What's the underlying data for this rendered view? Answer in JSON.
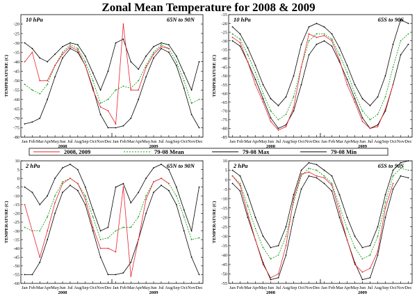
{
  "figure": {
    "title": "Zonal Mean Temperature for 2008 & 2009",
    "legend": [
      {
        "label": "2008, 2009",
        "color": "#e8212a",
        "dash": "none"
      },
      {
        "label": "79-08 Mean",
        "color": "#1a9e1a",
        "dash": "2,2"
      },
      {
        "label": "79-08 Max",
        "color": "#000000",
        "dash": "none"
      },
      {
        "label": "79-08 Min",
        "color": "#000000",
        "dash": "none"
      }
    ],
    "months": [
      "Jan",
      "Feb",
      "Mar",
      "Apr",
      "May",
      "Jun",
      "Jul",
      "Aug",
      "Sep",
      "Oct",
      "Nov",
      "Dec",
      "Jan",
      "Feb",
      "Mar",
      "Apr",
      "May",
      "Jun",
      "Jul",
      "Aug",
      "Sep",
      "Oct",
      "Nov",
      "Dec"
    ],
    "years": [
      "2008",
      "2009"
    ],
    "colors": {
      "obs": "#e8212a",
      "mean": "#1a9e1a",
      "bounds": "#000000"
    }
  },
  "chart_data": [
    {
      "type": "line",
      "pressure": "10 hPa",
      "region": "65N to 90N",
      "ylabel": "TEMPERATURE (C)",
      "ylim": [
        -80,
        -15
      ],
      "yticks": [
        -80,
        -75,
        -70,
        -65,
        -60,
        -55,
        -50,
        -45,
        -40,
        -35,
        -30,
        -25,
        -20
      ],
      "x": [
        "Jan 2008",
        "Feb",
        "Mar",
        "Apr",
        "May",
        "Jun",
        "Jul",
        "Aug",
        "Sep",
        "Oct",
        "Nov",
        "Dec",
        "Jan 2009",
        "Feb",
        "Mar",
        "Apr",
        "May",
        "Jun",
        "Jul",
        "Aug",
        "Sep",
        "Oct",
        "Nov",
        "Dec"
      ],
      "series": [
        {
          "name": "79-08 Max",
          "values": [
            -30,
            -33,
            -38,
            -40,
            -36,
            -32,
            -30,
            -31,
            -37,
            -46,
            -55,
            -45,
            -30,
            -28,
            -40,
            -44,
            -37,
            -32,
            -30,
            -31,
            -37,
            -46,
            -55,
            -40
          ]
        },
        {
          "name": "79-08 Mean",
          "values": [
            -52,
            -55,
            -57,
            -52,
            -42,
            -35,
            -31,
            -33,
            -40,
            -50,
            -62,
            -60,
            -55,
            -53,
            -54,
            -50,
            -42,
            -35,
            -31,
            -33,
            -40,
            -50,
            -62,
            -60
          ]
        },
        {
          "name": "79-08 Min",
          "values": [
            -73,
            -72,
            -70,
            -60,
            -48,
            -38,
            -33,
            -35,
            -42,
            -54,
            -68,
            -75,
            -75,
            -74,
            -70,
            -60,
            -48,
            -38,
            -33,
            -35,
            -42,
            -54,
            -68,
            -75
          ]
        },
        {
          "name": "2008, 2009",
          "values": [
            -40,
            -35,
            -50,
            -50,
            -42,
            -36,
            -32,
            -34,
            -42,
            -55,
            -64,
            -66,
            -73,
            -20,
            -55,
            -55,
            -43,
            -36,
            -32,
            -33,
            null,
            null,
            null,
            null
          ]
        }
      ]
    },
    {
      "type": "line",
      "pressure": "10 hPa",
      "region": "65S to 90S",
      "ylabel": "TEMPERATURE (C)",
      "ylim": [
        -85,
        -15
      ],
      "yticks": [
        -85,
        -80,
        -75,
        -70,
        -65,
        -60,
        -55,
        -50,
        -45,
        -40,
        -35,
        -30,
        -25,
        -20,
        -15
      ],
      "x": [
        "Jan 2008",
        "Feb",
        "Mar",
        "Apr",
        "May",
        "Jun",
        "Jul",
        "Aug",
        "Sep",
        "Oct",
        "Nov",
        "Dec",
        "Jan 2009",
        "Feb",
        "Mar",
        "Apr",
        "May",
        "Jun",
        "Jul",
        "Aug",
        "Sep",
        "Oct",
        "Nov",
        "Dec"
      ],
      "series": [
        {
          "name": "79-08 Max",
          "values": [
            -22,
            -26,
            -34,
            -44,
            -55,
            -63,
            -67,
            -62,
            -50,
            -32,
            -22,
            -20,
            -22,
            -26,
            -34,
            -44,
            -55,
            -63,
            -67,
            -62,
            -50,
            -32,
            -18,
            -20
          ]
        },
        {
          "name": "79-08 Mean",
          "values": [
            -26,
            -29,
            -38,
            -48,
            -60,
            -70,
            -75,
            -72,
            -62,
            -45,
            -30,
            -26,
            -26,
            -29,
            -38,
            -48,
            -60,
            -70,
            -75,
            -72,
            -62,
            -45,
            -30,
            -26
          ]
        },
        {
          "name": "79-08 Min",
          "values": [
            -30,
            -33,
            -42,
            -52,
            -63,
            -74,
            -80,
            -78,
            -70,
            -55,
            -38,
            -32,
            -30,
            -33,
            -42,
            -52,
            -63,
            -74,
            -80,
            -78,
            -70,
            -55,
            -38,
            -32
          ]
        },
        {
          "name": "2008, 2009",
          "values": [
            -28,
            -31,
            -42,
            -55,
            -65,
            -76,
            -81,
            -79,
            -68,
            -45,
            -26,
            -28,
            -27,
            -30,
            -41,
            -55,
            -65,
            -76,
            -80,
            -79,
            -69,
            -55,
            null,
            null
          ]
        }
      ]
    },
    {
      "type": "line",
      "pressure": "2 hPa",
      "region": "65N to 90N",
      "ylabel": "TEMPERATURE (C)",
      "ylim": [
        -60,
        10
      ],
      "yticks": [
        -60,
        -55,
        -50,
        -45,
        -40,
        -35,
        -30,
        -25,
        -20,
        -15,
        -10,
        -5,
        0,
        5,
        10
      ],
      "x": [
        "Jan 2008",
        "Feb",
        "Mar",
        "Apr",
        "May",
        "Jun",
        "Jul",
        "Aug",
        "Sep",
        "Oct",
        "Nov",
        "Dec",
        "Jan 2009",
        "Feb",
        "Mar",
        "Apr",
        "May",
        "Jun",
        "Jul",
        "Aug",
        "Sep",
        "Oct",
        "Nov",
        "Dec"
      ],
      "series": [
        {
          "name": "79-08 Max",
          "values": [
            -5,
            -8,
            -15,
            -10,
            0,
            6,
            8,
            5,
            -5,
            -18,
            -30,
            -28,
            -5,
            -3,
            -14,
            -8,
            0,
            6,
            8,
            5,
            -5,
            -18,
            -30,
            -5
          ]
        },
        {
          "name": "79-08 Mean",
          "values": [
            -28,
            -30,
            -30,
            -22,
            -10,
            -2,
            0,
            -3,
            -10,
            -22,
            -35,
            -34,
            -30,
            -28,
            -28,
            -22,
            -10,
            -2,
            0,
            -3,
            -10,
            -22,
            -35,
            -34
          ]
        },
        {
          "name": "79-08 Min",
          "values": [
            -55,
            -55,
            -48,
            -35,
            -20,
            -8,
            -4,
            -7,
            -15,
            -30,
            -45,
            -55,
            -55,
            -54,
            -48,
            -35,
            -20,
            -8,
            -4,
            -7,
            -15,
            -30,
            -45,
            -55
          ]
        },
        {
          "name": "2008, 2009",
          "values": [
            -15,
            -30,
            -45,
            -30,
            -14,
            -3,
            0,
            -3,
            -12,
            -28,
            -40,
            -40,
            -42,
            -5,
            -56,
            -35,
            -12,
            -2,
            0,
            -3,
            null,
            null,
            null,
            null
          ]
        }
      ]
    },
    {
      "type": "line",
      "pressure": "2 hPa",
      "region": "65S to 90S",
      "ylabel": "TEMPERATURE (C)",
      "ylim": [
        -55,
        10
      ],
      "yticks": [
        -55,
        -50,
        -45,
        -40,
        -35,
        -30,
        -25,
        -20,
        -15,
        -10,
        -5,
        0,
        5,
        10
      ],
      "x": [
        "Jan 2008",
        "Feb",
        "Mar",
        "Apr",
        "May",
        "Jun",
        "Jul",
        "Aug",
        "Sep",
        "Oct",
        "Nov",
        "Dec",
        "Jan 2009",
        "Feb",
        "Mar",
        "Apr",
        "May",
        "Jun",
        "Jul",
        "Aug",
        "Sep",
        "Oct",
        "Nov",
        "Dec"
      ],
      "series": [
        {
          "name": "79-08 Max",
          "values": [
            5,
            2,
            -8,
            -20,
            -30,
            -36,
            -35,
            -25,
            -8,
            5,
            9,
            8,
            5,
            2,
            -8,
            -20,
            -30,
            -36,
            -35,
            -25,
            -8,
            5,
            9,
            10
          ]
        },
        {
          "name": "79-08 Mean",
          "values": [
            2,
            -2,
            -14,
            -26,
            -36,
            -42,
            -40,
            -30,
            -12,
            2,
            6,
            5,
            2,
            -2,
            -14,
            -26,
            -36,
            -42,
            -40,
            -30,
            -12,
            2,
            6,
            5
          ]
        },
        {
          "name": "79-08 Min",
          "values": [
            -2,
            -6,
            -20,
            -32,
            -44,
            -53,
            -52,
            -40,
            -20,
            -5,
            2,
            1,
            -2,
            -6,
            -20,
            -32,
            -44,
            -53,
            -52,
            -40,
            -20,
            -5,
            2,
            1
          ]
        },
        {
          "name": "2008, 2009",
          "values": [
            2,
            -3,
            -18,
            -32,
            -45,
            -52,
            -50,
            -35,
            -10,
            3,
            4,
            2,
            1,
            -3,
            -17,
            -32,
            -45,
            -49,
            -47,
            -38,
            -15,
            -2,
            null,
            null
          ]
        }
      ]
    }
  ]
}
